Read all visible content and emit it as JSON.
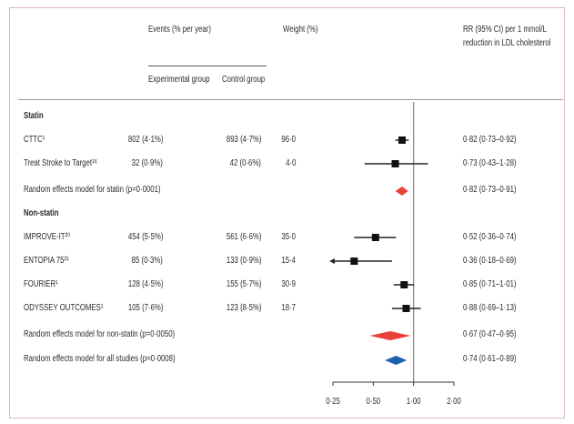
{
  "header": {
    "events": "Events (% per year)",
    "experimental": "Experimental group",
    "control": "Control group",
    "weight": "Weight (%)",
    "rr_line1": "RR (95% CI) per 1 mmol/L",
    "rr_line2": "reduction in LDL cholesterol"
  },
  "rows": [
    {
      "label": "Statin",
      "kind": "section"
    },
    {
      "label": "CTTC¹",
      "kind": "study",
      "exp": "802 (4·1%)",
      "ctrl": "893 (4·7%)",
      "weight": "96·0",
      "rr": "0·82 (0·73–0·92)"
    },
    {
      "label": "Treat Stroke to Target¹⁶",
      "kind": "study",
      "exp": "32 (0·9%)",
      "ctrl": "42 (0·6%)",
      "weight": "4·0",
      "rr": "0·73 (0·43–1·28)"
    },
    {
      "label": "Random effects model for statin (p=0·0001)",
      "kind": "pooled",
      "rr": "0·82 (0·73–0·91)"
    },
    {
      "label": "Non-statin",
      "kind": "section"
    },
    {
      "label": "IMPROVE-IT²⁰",
      "kind": "study",
      "exp": "454 (5·5%)",
      "ctrl": "561 (6·6%)",
      "weight": "35·0",
      "rr": "0·52 (0·36–0·74)"
    },
    {
      "label": "ENTOPIA 75²¹",
      "kind": "study",
      "exp": "85 (0·3%)",
      "ctrl": "133 (0·9%)",
      "weight": "15·4",
      "rr": "0·36 (0·18–0·69)"
    },
    {
      "label": "FOURIER¹",
      "kind": "study",
      "exp": "128 (4·5%)",
      "ctrl": "155 (5·7%)",
      "weight": "30·9",
      "rr": "0·85 (0·71–1·01)"
    },
    {
      "label": "ODYSSEY OUTCOMES¹",
      "kind": "study",
      "exp": "105 (7·6%)",
      "ctrl": "123 (8·5%)",
      "weight": "18·7",
      "rr": "0·88 (0·69–1·13)"
    },
    {
      "label": "Random effects model for non-statin (p=0·0050)",
      "kind": "pooled",
      "rr": "0·67 (0·47–0·95)"
    },
    {
      "label": "Random effects model for all studies (p=0·0008)",
      "kind": "pooled_all",
      "rr": "0·74 (0·61–0·89)"
    }
  ],
  "chart_data": {
    "type": "forest",
    "x_scale": "log",
    "xlim": [
      0.25,
      2.0
    ],
    "x_ticks": [
      0.25,
      0.5,
      1.0,
      2.0
    ],
    "x_tick_labels": [
      "0·25",
      "0·50",
      "1·00",
      "2·00"
    ],
    "reference_line": 1.0,
    "points": [
      {
        "study": "CTTC",
        "rr": 0.82,
        "lo": 0.73,
        "hi": 0.92,
        "marker": "square",
        "color": "#111111"
      },
      {
        "study": "Treat Stroke to Target",
        "rr": 0.73,
        "lo": 0.43,
        "hi": 1.28,
        "marker": "square",
        "color": "#111111"
      },
      {
        "study": "Random effects model for statin",
        "rr": 0.82,
        "lo": 0.73,
        "hi": 0.91,
        "marker": "diamond",
        "color": "#e8413a"
      },
      {
        "study": "IMPROVE-IT",
        "rr": 0.52,
        "lo": 0.36,
        "hi": 0.74,
        "marker": "square",
        "color": "#111111"
      },
      {
        "study": "ENTOPIA 75",
        "rr": 0.36,
        "lo": 0.18,
        "hi": 0.69,
        "marker": "square",
        "color": "#111111",
        "arrow_left": true
      },
      {
        "study": "FOURIER",
        "rr": 0.85,
        "lo": 0.71,
        "hi": 1.01,
        "marker": "square",
        "color": "#111111"
      },
      {
        "study": "ODYSSEY OUTCOMES",
        "rr": 0.88,
        "lo": 0.69,
        "hi": 1.13,
        "marker": "square",
        "color": "#111111"
      },
      {
        "study": "Random effects model for non-statin",
        "rr": 0.67,
        "lo": 0.47,
        "hi": 0.95,
        "marker": "diamond",
        "color": "#e8413a"
      },
      {
        "study": "Random effects model for all studies",
        "rr": 0.74,
        "lo": 0.61,
        "hi": 0.89,
        "marker": "diamond",
        "color": "#1f5fb0"
      }
    ]
  }
}
